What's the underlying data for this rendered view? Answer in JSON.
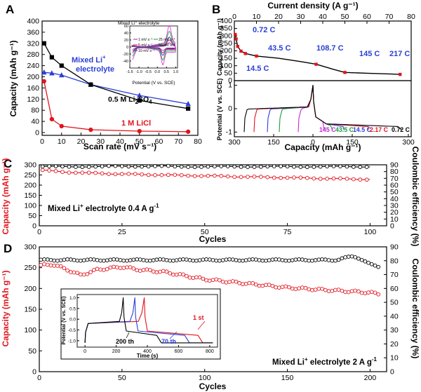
{
  "chart_data": [
    {
      "id": "A",
      "type": "line",
      "panel_label": "A",
      "xlabel": "Scan rate (mV s⁻¹)",
      "ylabel": "Capacity (mAh g⁻¹)",
      "xlim": [
        0,
        80
      ],
      "ylim": [
        -10,
        400
      ],
      "xticks": [
        0,
        10,
        20,
        30,
        40,
        50,
        60,
        70,
        80
      ],
      "yticks": [
        0,
        40,
        80,
        120,
        160,
        200,
        240,
        280,
        320,
        360,
        400
      ],
      "series": [
        {
          "name": "Mixed Li⁺ electrolyte",
          "color": "#2b3fd6",
          "marker": "triangle",
          "x": [
            1,
            5,
            10,
            25,
            50,
            75
          ],
          "y": [
            216,
            213,
            206,
            172,
            133,
            103
          ]
        },
        {
          "name": "0.5 M Li2SO4",
          "color": "#000000",
          "marker": "square",
          "x": [
            1,
            5,
            10,
            25,
            50,
            75
          ],
          "y": [
            320,
            270,
            240,
            172,
            115,
            86
          ]
        },
        {
          "name": "1 M LiCl",
          "color": "#e0141e",
          "marker": "circle",
          "x": [
            1,
            5,
            10,
            25,
            50,
            75
          ],
          "y": [
            184,
            48,
            23,
            10,
            5,
            3
          ]
        }
      ],
      "labels": {
        "mixed_line1": "Mixed Li",
        "mixed_sup": "+",
        "mixed_line2": "electrolyte",
        "li2so4_main": "0.5 M Li",
        "li2so4_sub": "2",
        "li2so4_tail": "SO",
        "li2so4_sub2": "4",
        "licl": "1 M LiCl"
      },
      "inset": {
        "title": "Mixed Li⁺ electrolyte",
        "xlabel": "Potential (V vs. SCE)",
        "xlim": [
          -1.5,
          1.1
        ],
        "ylim": [
          -60,
          60
        ],
        "xticks": [
          -1.5,
          -1.0,
          -0.5,
          0.0,
          0.5,
          1.0
        ],
        "yticks": [
          -40,
          -20,
          0,
          20,
          40,
          60
        ],
        "legend": [
          {
            "label": "1 mV s⁻¹",
            "color": "#7b2fbf"
          },
          {
            "label": "25 mV s⁻¹",
            "color": "#1a9e3a"
          },
          {
            "label": "5 mV s⁻¹",
            "color": "#e0141e"
          },
          {
            "label": "50 mV s⁻¹",
            "color": "#e23ad8"
          },
          {
            "label": "10 mV s⁻¹",
            "color": "#2b3fd6"
          }
        ]
      }
    },
    {
      "id": "B-top",
      "type": "line",
      "panel_label": "B",
      "xlabel": "Current density (A g⁻¹)",
      "ylabel": "Capacity (mAh g⁻¹)",
      "xlim": [
        0,
        80
      ],
      "ylim": [
        0,
        400
      ],
      "xticks": [
        0,
        10,
        20,
        30,
        40,
        50,
        60,
        70,
        80
      ],
      "yticks": [
        0,
        50,
        100,
        150,
        200,
        250,
        300,
        350,
        400
      ],
      "series": [
        {
          "name": "rate capability",
          "color": "#000000",
          "x": [
            0.4,
            0.8,
            1.5,
            3,
            5,
            10,
            20,
            30,
            37,
            45,
            50,
            60,
            70,
            75
          ],
          "y": [
            310,
            280,
            230,
            198,
            182,
            165,
            150,
            128,
            110,
            75,
            55,
            50,
            45,
            42
          ]
        },
        {
          "name": "marked points",
          "color": "#e0141e",
          "x": [
            0.4,
            0.8,
            1.5,
            3,
            5,
            10,
            37,
            50,
            75
          ],
          "y": [
            310,
            280,
            230,
            198,
            182,
            165,
            110,
            55,
            42
          ]
        }
      ],
      "annotations": [
        "0.72 C",
        "43.5 C",
        "14.5 C",
        "108.7 C",
        "145 C",
        "217 C"
      ]
    },
    {
      "id": "B-bottom",
      "type": "line",
      "xlabel": "Capacity (mAh g⁻¹)",
      "ylabel": "Potential (V vs. SCE)",
      "xlim": [
        300,
        -150
      ],
      "ylim": [
        -1.2,
        1.2
      ],
      "xticks": [
        300,
        150,
        0,
        150,
        300
      ],
      "yticks": [
        -1,
        0,
        1
      ],
      "legend": [
        {
          "label": "145 C",
          "color": "#c42ad6"
        },
        {
          "label": "43.5 C",
          "color": "#1a9e3a"
        },
        {
          "label": "14.5 C",
          "color": "#2b3fd6"
        },
        {
          "label": "2.17 C",
          "color": "#e0141e"
        },
        {
          "label": "0.72 C",
          "color": "#000000"
        }
      ]
    },
    {
      "id": "C",
      "type": "line",
      "panel_label": "C",
      "xlabel": "Cycles",
      "ylabel": "Capacity (mAh g⁻¹)",
      "y2label": "Coulombic efficiency (%)",
      "xlim": [
        0,
        105
      ],
      "ylim": [
        0,
        300
      ],
      "y2lim": [
        0,
        90
      ],
      "xticks": [
        0,
        25,
        50,
        75,
        100
      ],
      "yticks": [
        0,
        50,
        100,
        150,
        200,
        250,
        300
      ],
      "y2ticks": [
        0,
        10,
        20,
        30,
        40,
        50,
        60,
        70,
        80,
        90
      ],
      "series": [
        {
          "name": "Coulombic efficiency",
          "axis": "right",
          "color": "#000000",
          "start": 87,
          "end": 88
        },
        {
          "name": "Capacity",
          "axis": "left",
          "color": "#e0141e",
          "start": 275,
          "end": 225
        }
      ],
      "annotation_main": "Mixed Li",
      "annotation_sup": "+",
      "annotation_tail": " electrolyte  0.4 A g",
      "annotation_exp": "-1"
    },
    {
      "id": "D",
      "type": "line",
      "panel_label": "D",
      "xlabel": "Cycles",
      "ylabel": "Capacity (mAh g⁻¹)",
      "y2label": "Coulombic efficiency (%)",
      "xlim": [
        0,
        210
      ],
      "ylim": [
        0,
        300
      ],
      "y2lim": [
        0,
        90
      ],
      "xticks": [
        0,
        50,
        100,
        150,
        200
      ],
      "yticks": [
        0,
        50,
        100,
        150,
        200,
        250,
        300
      ],
      "y2ticks": [
        0,
        10,
        20,
        30,
        40,
        50,
        60,
        70,
        80,
        90
      ],
      "series": [
        {
          "name": "Coulombic efficiency",
          "axis": "right",
          "color": "#000000"
        },
        {
          "name": "Capacity",
          "axis": "left",
          "color": "#e0141e",
          "x": [
            1,
            8,
            15,
            25,
            35,
            50,
            60,
            75,
            100,
            125,
            150,
            175,
            200,
            205
          ],
          "y": [
            255,
            258,
            248,
            232,
            245,
            252,
            245,
            240,
            222,
            212,
            202,
            196,
            190,
            187
          ]
        }
      ],
      "annotation_main": "Mixed Li",
      "annotation_sup": "+",
      "annotation_tail": " electrolyte  2 A g",
      "annotation_exp": "-1",
      "inset": {
        "xlabel": "Time (s)",
        "ylabel": "Potential (V vs. SCE)",
        "xlim": [
          -50,
          850
        ],
        "ylim": [
          -1.3,
          1.15
        ],
        "xticks": [
          0,
          200,
          400,
          600,
          800
        ],
        "yticks": [
          -1.0,
          -0.5,
          0.0,
          0.5,
          1.0
        ],
        "labels": [
          {
            "text": "1 st",
            "color": "#e0141e"
          },
          {
            "text": "70 th",
            "color": "#2b3fd6"
          },
          {
            "text": "200 th",
            "color": "#000000"
          }
        ]
      }
    }
  ]
}
